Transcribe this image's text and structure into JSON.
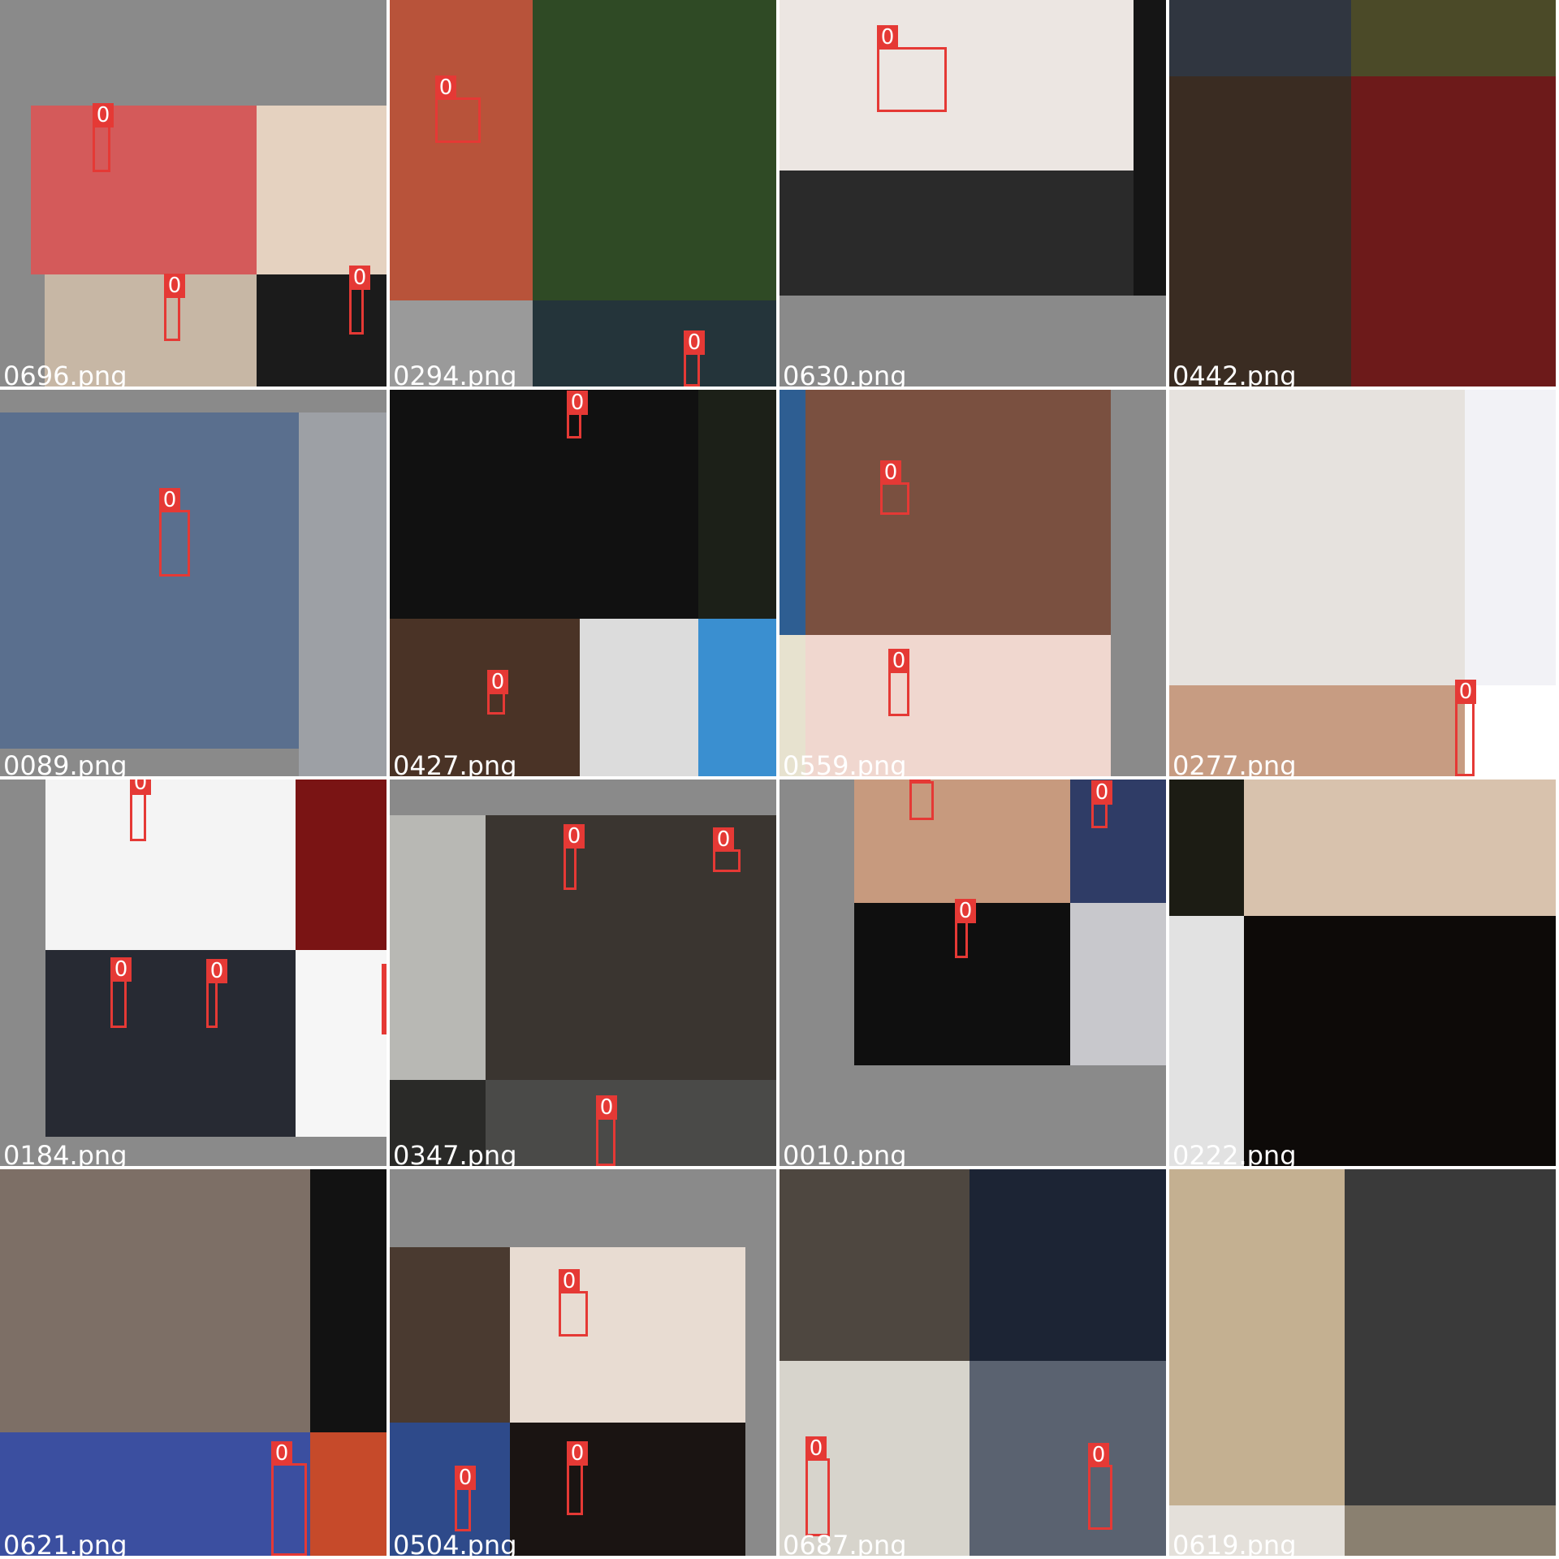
{
  "tiles": [
    {
      "name": "0696.png"
    },
    {
      "name": "0294.png"
    },
    {
      "name": "0630.png"
    },
    {
      "name": "0442.png"
    },
    {
      "name": "0089.png"
    },
    {
      "name": "0427.png"
    },
    {
      "name": "0559.png"
    },
    {
      "name": "0277.png"
    },
    {
      "name": "0184.png"
    },
    {
      "name": "0347.png"
    },
    {
      "name": "0010.png"
    },
    {
      "name": "0222.png"
    },
    {
      "name": "0621.png"
    },
    {
      "name": "0504.png"
    },
    {
      "name": "0687.png"
    },
    {
      "name": "0619.png"
    }
  ],
  "box_label": "0",
  "colors": {
    "box": "#e53935",
    "filename_text": "#ffffff",
    "letterbox_gray": "#8a8a8a"
  }
}
